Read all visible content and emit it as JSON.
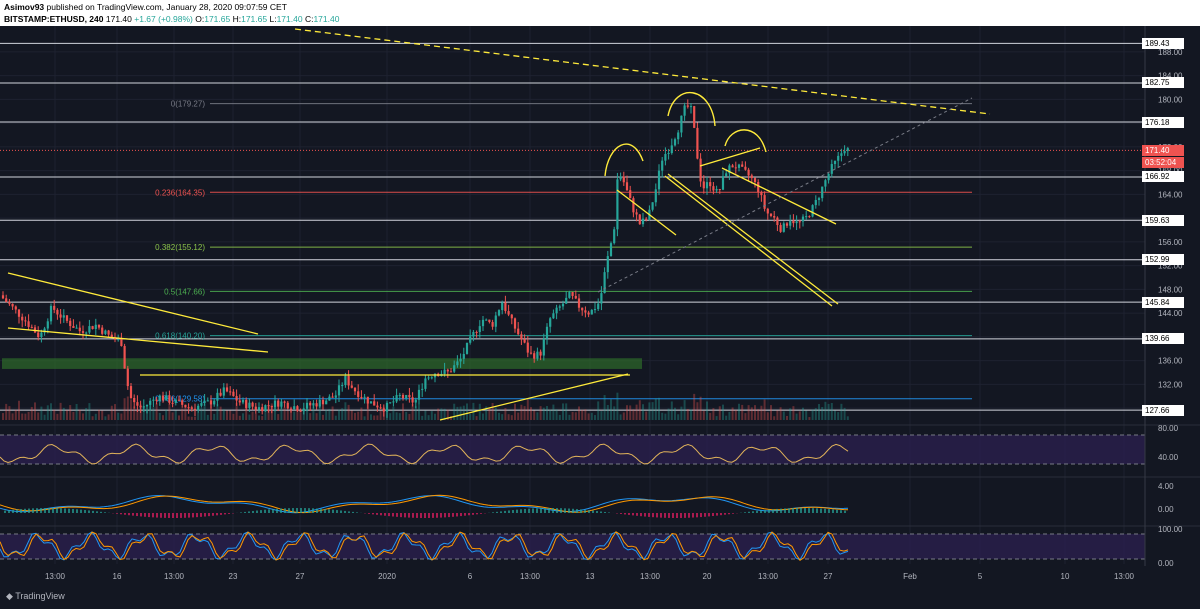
{
  "header": {
    "line1_user": "Asimov93",
    "line1_rest": " published on TradingView.com, January 28, 2020 09:07:59 CET",
    "line2_symbol": "BITSTAMP:ETHUSD, 240",
    "line2_price": "171.40",
    "line2_change": "+1.67 (+0.98%)",
    "o_label": "O:",
    "o_val": "171.65",
    "h_label": "H:",
    "h_val": "171.65",
    "l_label": "L:",
    "l_val": "171.40",
    "c_label": "C:",
    "c_val": "171.40"
  },
  "price_axis": {
    "ticks": [
      "188.00",
      "184.00",
      "180.00",
      "176.00",
      "172.00",
      "168.00",
      "164.00",
      "160.00",
      "156.00",
      "152.00",
      "148.00",
      "144.00",
      "140.00",
      "136.00",
      "132.00",
      "128.00"
    ],
    "labels": [
      {
        "text": "189.43",
        "style": "white"
      },
      {
        "text": "182.75",
        "style": "white"
      },
      {
        "text": "176.18",
        "style": "white"
      },
      {
        "text": "171.40",
        "style": "red"
      },
      {
        "text": "03:52:04",
        "style": "red"
      },
      {
        "text": "166.92",
        "style": "white"
      },
      {
        "text": "159.63",
        "style": "white"
      },
      {
        "text": "152.99",
        "style": "white"
      },
      {
        "text": "145.84",
        "style": "white"
      },
      {
        "text": "139.66",
        "style": "white"
      },
      {
        "text": "127.66",
        "style": "white"
      }
    ]
  },
  "fib_labels": [
    "0(179.27)",
    "0.236(164.35)",
    "0.382(155.12)",
    "0.5(147.66)",
    "0.618(140.20)",
    "0.786(129.58)"
  ],
  "rsi_axis": [
    "80.00",
    "40.00"
  ],
  "macd_axis": [
    "4.00",
    "0.00"
  ],
  "stoch_axis": [
    "100.00",
    "0.00"
  ],
  "time_axis": [
    "13:00",
    "16",
    "13:00",
    "23",
    "27",
    "2020",
    "6",
    "13:00",
    "13",
    "13:00",
    "20",
    "13:00",
    "27",
    "Feb",
    "5",
    "10",
    "13:00"
  ],
  "watermark": "TradingView",
  "colors": {
    "background": "#131722",
    "up": "#26a69a",
    "down": "#ef5350",
    "annotation": "#ffeb3b",
    "fib": "#787b86"
  },
  "chart_data": {
    "type": "candlestick",
    "symbol": "BITSTAMP:ETHUSD",
    "interval": "240",
    "ylim": [
      126,
      191
    ],
    "horizontal_levels": [
      189.43,
      182.75,
      176.18,
      166.92,
      159.63,
      152.99,
      145.84,
      139.66,
      127.66
    ],
    "fib_levels": [
      179.27,
      164.35,
      155.12,
      147.66,
      140.2,
      129.58
    ],
    "last_price": 171.4,
    "path": [
      [
        0,
        147
      ],
      [
        12,
        145
      ],
      [
        24,
        143
      ],
      [
        40,
        140
      ],
      [
        52,
        145
      ],
      [
        64,
        143
      ],
      [
        80,
        141
      ],
      [
        96,
        142
      ],
      [
        110,
        140
      ],
      [
        122,
        139
      ],
      [
        126,
        133
      ],
      [
        132,
        129
      ],
      [
        142,
        128
      ],
      [
        158,
        130
      ],
      [
        175,
        129
      ],
      [
        192,
        128
      ],
      [
        210,
        129
      ],
      [
        225,
        131
      ],
      [
        240,
        129
      ],
      [
        258,
        128
      ],
      [
        280,
        129
      ],
      [
        300,
        128
      ],
      [
        320,
        129
      ],
      [
        335,
        130
      ],
      [
        345,
        133
      ],
      [
        355,
        131
      ],
      [
        370,
        129
      ],
      [
        385,
        128
      ],
      [
        400,
        130
      ],
      [
        415,
        129
      ],
      [
        425,
        133
      ],
      [
        435,
        134
      ],
      [
        448,
        134
      ],
      [
        460,
        136
      ],
      [
        472,
        140
      ],
      [
        482,
        143
      ],
      [
        492,
        142
      ],
      [
        502,
        146
      ],
      [
        510,
        143
      ],
      [
        520,
        140
      ],
      [
        530,
        137
      ],
      [
        540,
        137
      ],
      [
        550,
        143
      ],
      [
        560,
        145
      ],
      [
        570,
        147
      ],
      [
        580,
        145
      ],
      [
        590,
        144
      ],
      [
        600,
        146
      ],
      [
        606,
        152
      ],
      [
        614,
        158
      ],
      [
        618,
        168
      ],
      [
        624,
        166
      ],
      [
        632,
        162
      ],
      [
        640,
        159
      ],
      [
        648,
        160
      ],
      [
        656,
        165
      ],
      [
        662,
        170
      ],
      [
        670,
        172
      ],
      [
        678,
        175
      ],
      [
        686,
        179
      ],
      [
        692,
        178
      ],
      [
        696,
        172
      ],
      [
        702,
        165
      ],
      [
        710,
        166
      ],
      [
        718,
        164
      ],
      [
        726,
        168
      ],
      [
        734,
        169
      ],
      [
        742,
        168
      ],
      [
        750,
        167
      ],
      [
        758,
        165
      ],
      [
        766,
        161
      ],
      [
        774,
        160
      ],
      [
        782,
        158
      ],
      [
        790,
        160
      ],
      [
        798,
        159
      ],
      [
        806,
        160
      ],
      [
        814,
        162
      ],
      [
        822,
        165
      ],
      [
        830,
        168
      ],
      [
        838,
        170
      ],
      [
        845,
        172
      ],
      [
        848,
        171.4
      ]
    ]
  }
}
